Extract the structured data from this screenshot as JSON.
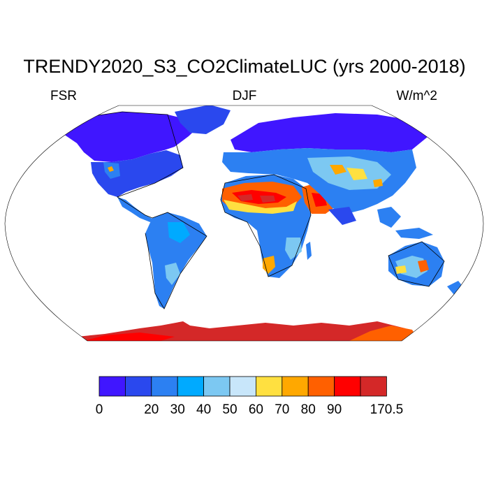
{
  "title": "TRENDY2020_S3_CO2ClimateLUC (yrs 2000-2018)",
  "left_label": "FSR",
  "center_label": "DJF",
  "right_label": "W/m^2",
  "colorbar": {
    "colors": [
      "#4016FF",
      "#2A48EE",
      "#2C80F2",
      "#00AAFF",
      "#7CC8F2",
      "#C8E6FA",
      "#FFE040",
      "#FFA800",
      "#FF6000",
      "#FF0000",
      "#D42828"
    ],
    "tick_labels": [
      "0",
      "",
      "20",
      "30",
      "40",
      "50",
      "60",
      "70",
      "80",
      "90",
      "",
      "170.5"
    ]
  }
}
